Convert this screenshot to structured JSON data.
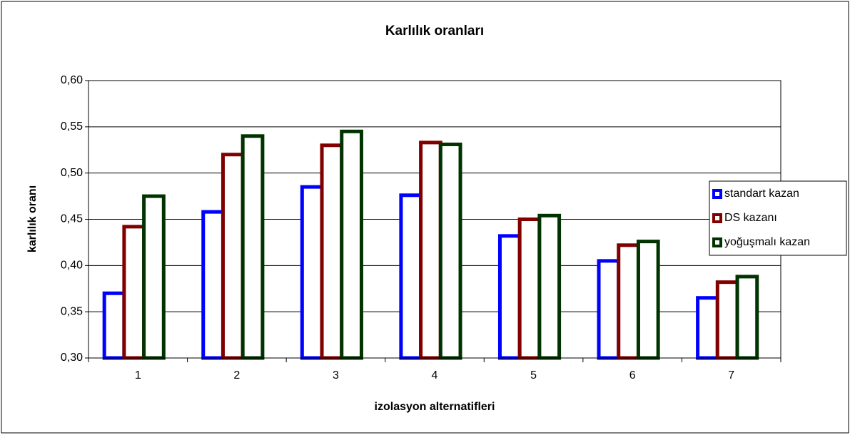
{
  "chart_data": {
    "type": "bar",
    "title": "Karlılık oranları",
    "x_label": "izolasyon alternatifleri",
    "y_label": "karlılık oranı",
    "categories": [
      "1",
      "2",
      "3",
      "4",
      "5",
      "6",
      "7"
    ],
    "series": [
      {
        "name": "standart kazan",
        "color": "#0000ff",
        "values": [
          0.37,
          0.458,
          0.485,
          0.476,
          0.432,
          0.405,
          0.365
        ]
      },
      {
        "name": "DS kazanı",
        "color": "#800000",
        "values": [
          0.442,
          0.52,
          0.53,
          0.533,
          0.45,
          0.422,
          0.382
        ]
      },
      {
        "name": "yoğuşmalı kazan",
        "color": "#003300",
        "values": [
          0.475,
          0.54,
          0.545,
          0.531,
          0.454,
          0.426,
          0.388
        ]
      }
    ],
    "ylim": [
      0.3,
      0.6
    ],
    "yticks": [
      {
        "value": 0.3,
        "label": "0,30"
      },
      {
        "value": 0.35,
        "label": "0,35"
      },
      {
        "value": 0.4,
        "label": "0,40"
      },
      {
        "value": 0.45,
        "label": "0,45"
      },
      {
        "value": 0.5,
        "label": "0,50"
      },
      {
        "value": 0.55,
        "label": "0,55"
      },
      {
        "value": 0.6,
        "label": "0,60"
      }
    ],
    "grid": true,
    "legend": "right"
  }
}
